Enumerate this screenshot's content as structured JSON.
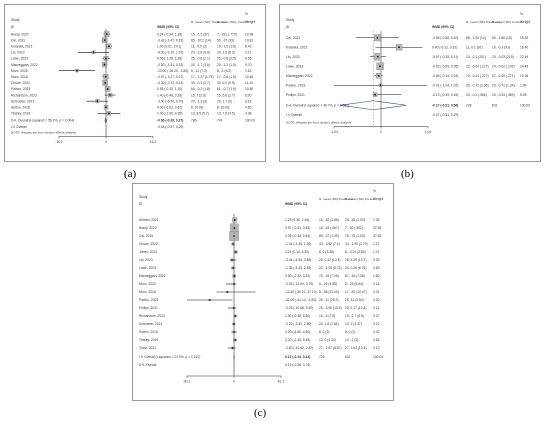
{
  "panels": [
    {
      "label": "(a)"
    },
    {
      "label": "(b)"
    },
    {
      "label": "(c)"
    }
  ],
  "chart_data": [
    {
      "type": "forest",
      "panel": "(a)",
      "header": {
        "study": "Study",
        "id": "ID",
        "effect": "WMD (95% CI)",
        "treat_n": "N, mean (SD); Treatment",
        "ctrl_n": "N, mean (SD); Control",
        "pct": "%",
        "weight": "Weight"
      },
      "studies": [
        {
          "name": "Brady, 2020",
          "effect_text": "0.24 (-0.94, 1.38)",
          "treat_text": "15, -1.2 (37)",
          "ctrl_text": "7, -28 (1.770)",
          "weight_text": "10.98",
          "mean": 0.24,
          "lo": -0.94,
          "hi": 1.38,
          "weight": 10.98
        },
        {
          "name": "Cai, 2021",
          "effect_text": "-0.42 (-1.47, 0.21)",
          "treat_text": "85, -10.2 (14)",
          "ctrl_text": "50, -37 (33)",
          "weight_text": "10.81",
          "mean": -0.42,
          "lo": -1.47,
          "hi": 0.21,
          "weight": 10.81
        },
        {
          "name": "Kolareta, 2021",
          "effect_text": "1.00 (0.01, 2.01)",
          "treat_text": "11, -0.5 (2)",
          "ctrl_text": "10, -1.5 (1.5)",
          "weight_text": "8.40",
          "mean": 1.0,
          "lo": 0.01,
          "hi": 2.01,
          "weight": 8.4
        },
        {
          "name": "Lin, 2023",
          "effect_text": "-4.30 (-9.70, 1.10)",
          "treat_text": "24, -2.8 (9.9)",
          "ctrl_text": "20, 1.5 (8.3)",
          "weight_text": "2.11",
          "mean": -4.3,
          "lo": -9.7,
          "hi": 1.1,
          "weight": 2.11
        },
        {
          "name": "Lowe, 2023",
          "effect_text": "0.00 (-1.28, 1.28)",
          "treat_text": "25, -0.6 (2.1)",
          "ctrl_text": "25, -0.6 (2.5)",
          "weight_text": "6.95",
          "mean": 0.0,
          "lo": -1.28,
          "hi": 1.28,
          "weight": 6.95
        },
        {
          "name": "Maroeggian, 2022",
          "effect_text": "-0.50 (-1.31, 0.32)",
          "treat_text": "20, -1.7 (1.6)",
          "ctrl_text": "20, -1.2 (1.0)",
          "weight_text": "9.70",
          "mean": -0.5,
          "lo": -1.31,
          "hi": 0.32,
          "weight": 9.7
        },
        {
          "name": "Moro, 2020",
          "effect_text": "-10.00 (-16.20, -3.80)",
          "treat_text": "8, -11 (7.2)",
          "ctrl_text": "8, -1 (5.2)",
          "weight_text": "1.63",
          "mean": -10.0,
          "lo": -16.2,
          "hi": -3.8,
          "weight": 1.63
        },
        {
          "name": "Moro, 2016",
          "effect_text": "-0.07 (-1.27, 0.27)",
          "treat_text": "17, -1.27 (1.78)",
          "ctrl_text": "17, -0.6 (1.8)",
          "weight_text": "10.45",
          "mean": -0.07,
          "lo": -1.27,
          "hi": 0.27,
          "weight": 10.45
        },
        {
          "name": "Chuan, 2022",
          "effect_text": "-0.30 (-0.72, 0.12)",
          "treat_text": "30, -0.3 (0.7)",
          "ctrl_text": "30, 0.0 (0.9)",
          "weight_text": "11.10",
          "mean": -0.3,
          "lo": -0.72,
          "hi": 0.12,
          "weight": 11.1
        },
        {
          "name": "Pavlou, 2023",
          "effect_text": "0.55 (-0.10, 1.20)",
          "treat_text": "60, -0.2 (1.8)",
          "ctrl_text": "61, -0.7 (1.9)",
          "weight_text": "10.50",
          "mean": 0.55,
          "lo": -0.1,
          "hi": 1.2,
          "weight": 10.5
        },
        {
          "name": "Richardson, 2023",
          "effect_text": "1.40 (-0.48, 3.28)",
          "treat_text": "15, 7 (2.6)",
          "ctrl_text": "15, 5.6 (2.7)",
          "weight_text": "5.00",
          "mean": 1.4,
          "lo": -0.48,
          "hi": 3.28,
          "weight": 5.0
        },
        {
          "name": "Schroeter, 2021",
          "effect_text": "-3.00 (-6.70, 0.70)",
          "treat_text": "20, -1.3 (6)",
          "ctrl_text": "20, 1.7 (6)",
          "weight_text": "3.19",
          "mean": -3.0,
          "lo": -6.7,
          "hi": 0.7,
          "weight": 3.19
        },
        {
          "name": "Sutton, 2018",
          "effect_text": "0.00 (-0.62, 0.62)",
          "treat_text": "8, 20 (6)",
          "ctrl_text": "8, 20 (6)",
          "weight_text": "4.80",
          "mean": 0.0,
          "lo": -0.62,
          "hi": 0.62,
          "weight": 4.8
        },
        {
          "name": "Tinsley, 2019",
          "effect_text": "1.00 (-2.95, 4.95)",
          "treat_text": "13, 8.5 (5.7)",
          "ctrl_text": "13, 7.5 (4.5)",
          "weight_text": "4.38",
          "mean": 1.0,
          "lo": -2.95,
          "hi": 4.95,
          "weight": 4.38
        }
      ],
      "overall": {
        "name": "D+L Overall (I-squared = 56.7%, p = 0.004)",
        "effect_text": "-0.06 (-0.39, 0.27)",
        "treat_text": "786",
        "ctrl_text": "747",
        "weight_text": "100.00",
        "mean": -0.06,
        "lo": -0.39,
        "hi": 0.27
      },
      "summary_rows": [
        {
          "name": "I-V Overall",
          "effect_text": "-0.04 (-0.37, 0.29)",
          "mean": -0.04
        }
      ],
      "note": "NOTE: Weights are from random effects analysis",
      "xticks": [
        -16.2,
        0,
        16.2
      ],
      "xlim": [
        -16.2,
        16.2
      ]
    },
    {
      "type": "forest",
      "panel": "(b)",
      "header": {
        "study": "Study",
        "id": "ID",
        "effect": "WMD (95% CI)",
        "treat_n": "N, mean (SD) Treatment",
        "ctrl_n": "N, mean (SD) Control",
        "pct": "%",
        "weight": "Weight"
      },
      "studies": [
        {
          "name": "Cai, 2021",
          "effect_text": "-0.08 (-0.56, 0.40)",
          "treat_text": "85, -1.94 (14)",
          "ctrl_text": "50, -1.86 (15)",
          "weight_text": "19.32",
          "mean": -0.08,
          "lo": -0.56,
          "hi": 0.4,
          "weight": 19.32
        },
        {
          "name": "Kolareta, 2021",
          "effect_text": "0.40 (-0.12, 0.92)",
          "treat_text": "11, 0.1 (91)",
          "ctrl_text": "10, -0.3 (93)",
          "weight_text": "16.40",
          "mean": 0.4,
          "lo": -0.12,
          "hi": 0.92,
          "weight": 16.4
        },
        {
          "name": "Lin, 2023",
          "effect_text": "-0.07 (-0.25, 0.11)",
          "treat_text": "24, -0.1 (201)",
          "ctrl_text": "20, -0.03 (215)",
          "weight_text": "22.49",
          "mean": -0.07,
          "lo": -0.25,
          "hi": 0.11,
          "weight": 22.49
        },
        {
          "name": "Lowe, 2023",
          "effect_text": "-0.02 (-0.09, 0.05)",
          "treat_text": "22, -0.04 (.127)",
          "ctrl_text": "24, -0.02 (.126)",
          "weight_text": "24.49",
          "mean": -0.02,
          "lo": -0.09,
          "hi": 0.05,
          "weight": 24.49
        },
        {
          "name": "Maroeggian, 2022",
          "effect_text": "-0.05 (-0.14, 0.04)",
          "treat_text": "70, -0.14 (.277)",
          "ctrl_text": "67, -0.09 (.271)",
          "weight_text": "10.26",
          "mean": -0.05,
          "lo": -0.14,
          "hi": 0.04,
          "weight": 10.26
        },
        {
          "name": "Pavlou, 2023",
          "effect_text": "-0.01 (-1.04, 1.02)",
          "treat_text": "20, -0.72 (1.96)",
          "ctrl_text": "20, -0.71 (1.24)",
          "weight_text": "1.99",
          "mean": -0.01,
          "lo": -1.04,
          "hi": 1.02,
          "weight": 1.99
        },
        {
          "name": "Philips, 2021",
          "effect_text": "-0.13 (-0.19, 0.45)",
          "treat_text": "20, -0.2 (.566)",
          "ctrl_text": "20, -0.33 (.489)",
          "weight_text": "5.05",
          "mean": -0.13,
          "lo": -0.19,
          "hi": 0.45,
          "weight": 5.05
        }
      ],
      "overall": {
        "name": "D+L Overall (I-squared = 46.7%, p = 0.080)",
        "effect_text": "-0.17 (-0.91, 0.56)",
        "treat_text": "728",
        "ctrl_text": "631",
        "weight_text": "100.00",
        "mean": -0.17,
        "lo": -0.91,
        "hi": 0.56
      },
      "summary_rows": [
        {
          "name": "I-V Overall",
          "effect_text": "-0.07 (-0.51, 0.29)",
          "mean": -0.07
        }
      ],
      "note": "NOTE: Weights are from random effects analysis",
      "xticks": [
        -1.04,
        0,
        1.04
      ],
      "xlim": [
        -1.04,
        1.04
      ]
    },
    {
      "type": "forest",
      "panel": "(c)",
      "header": {
        "study": "Study",
        "id": "ID",
        "effect": "WMD (95% CI)",
        "treat_n": "N, mean (SD) Treatment",
        "ctrl_n": "N, mean (SD) Control",
        "pct": "%",
        "weight": "Weight"
      },
      "studies": [
        {
          "name": "Ahmed, 2021",
          "effect_text": "1.25 (0.36, 2.44)",
          "treat_text": "15, -52 (1.86)",
          "ctrl_text": "25, -63 (1.93)",
          "weight_text": "7.08",
          "mean": 1.25,
          "lo": 0.36,
          "hi": 2.44,
          "weight": 7.08
        },
        {
          "name": "Brady, 2020",
          "effect_text": "0.57 (-0.51, 0.53)",
          "treat_text": "15, -24 (.667)",
          "ctrl_text": "7, -30 (.502)",
          "weight_text": "37.26",
          "mean": 0.57,
          "lo": -0.51,
          "hi": 0.53,
          "weight": 37.26
        },
        {
          "name": "Cai, 2019",
          "effect_text": "0.08 (-0.38, 0.54)",
          "treat_text": "85, -37 (1.39)",
          "ctrl_text": "75, -75 (1.53)",
          "weight_text": "47.62",
          "mean": 0.08,
          "lo": -0.38,
          "hi": 0.54,
          "weight": 47.62
        },
        {
          "name": "Chuan, 2022",
          "effect_text": "-1.44 (-4.26, 1.36)",
          "treat_text": "33, -3.52 (7.4)",
          "ctrl_text": "34, -1.90 (3.79)",
          "weight_text": "1.27",
          "mean": -1.44,
          "lo": -4.26,
          "hi": 1.36,
          "weight": 1.27
        },
        {
          "name": "Jones, 2023",
          "effect_text": "3.24 (0.10, 6.30)",
          "treat_text": "8, 0 (3.38)",
          "ctrl_text": "8, -3.24 (2.80)",
          "weight_text": "1.07",
          "mean": 3.24,
          "lo": 0.1,
          "hi": 6.3,
          "weight": 1.07
        },
        {
          "name": "Lin, 2023",
          "effect_text": "-3.44 (-6.94, 3.88)",
          "treat_text": "28, 0.42 (10.3)",
          "ctrl_text": "28, 4.26 (10.7)",
          "weight_text": "0.39",
          "mean": -3.44,
          "lo": -6.94,
          "hi": 3.88,
          "weight": 0.39
        },
        {
          "name": "Lowe, 2023",
          "effect_text": "-1.35 (-5.25, 2.55)",
          "treat_text": "22, -1.09 (6.72)",
          "ctrl_text": "24, 0.26 (6.76)",
          "weight_text": "0.69",
          "mean": -1.35,
          "lo": -5.25,
          "hi": 2.55,
          "weight": 0.69
        },
        {
          "name": "Maroeggian, 2022",
          "effect_text": "0.50 (-2.32, 3.32)",
          "treat_text": "70, -16 (7.06)",
          "ctrl_text": "67, -16 (7.06)",
          "weight_text": "1.60",
          "mean": 0.5,
          "lo": -2.32,
          "hi": 3.32,
          "weight": 1.6
        },
        {
          "name": "Moro, 2020",
          "effect_text": "-0.03 (-13.94, 3.79)",
          "treat_text": "8, -26 (4.58)",
          "ctrl_text": "8, -25 (6.64)",
          "weight_text": "0.14",
          "mean": -0.03,
          "lo": -13.94,
          "hi": 3.79,
          "weight": 0.14
        },
        {
          "name": "Moro, 2016",
          "effect_text": "-11.50 (-30.22, 37.10)",
          "treat_text": "8, -38 (21.05)",
          "ctrl_text": "17, -87 (10.07)",
          "weight_text": "0.01",
          "mean": -11.5,
          "lo": -30.22,
          "hi": 37.1,
          "weight": 0.01
        },
        {
          "name": "Pavlou, 2023",
          "effect_text": "-42.00 (-81.14, -2.90)",
          "treat_text": "25, -11 (28.3)",
          "ctrl_text": "25, 31 (3.50)",
          "weight_text": "0.00",
          "mean": -42.0,
          "lo": -81.14,
          "hi": -2.9,
          "weight": 0.0
        },
        {
          "name": "Philips, 2021",
          "effect_text": "-0.25 (-10.68, 3.92)",
          "treat_text": "25, -3.06 (10.5)",
          "ctrl_text": "20, 2.17 (10.8)",
          "weight_text": "0.12",
          "mean": -0.25,
          "lo": -10.68,
          "hi": 3.92,
          "weight": 0.12
        },
        {
          "name": "Richardson, 2023",
          "effect_text": "1.90 (-0.38, 5.80)",
          "treat_text": "15, -5 (7.6)",
          "ctrl_text": "15, -2.7 (6.9)",
          "weight_text": "0.37",
          "mean": 1.9,
          "lo": -0.38,
          "hi": 5.8,
          "weight": 0.37
        },
        {
          "name": "Schroeter, 2021",
          "effect_text": "-0.20 (-3.30, 2.90)",
          "treat_text": "20, 1.8 (1.84)",
          "ctrl_text": "13, 2 (2.47)",
          "weight_text": "0.21",
          "mean": -0.2,
          "lo": -3.3,
          "hi": 2.9,
          "weight": 0.21
        },
        {
          "name": "Sutton, 2018",
          "effect_text": "0.00 (-4.80, 4.80)",
          "treat_text": "8, 0 (2)",
          "ctrl_text": "8, 0 (2)",
          "weight_text": "0.42",
          "mean": 0.0,
          "lo": -4.8,
          "hi": 4.8,
          "weight": 0.42
        },
        {
          "name": "Tinsley, 2019",
          "effect_text": "2.00 (-1.45, 5.45)",
          "treat_text": "13, 0 (4.24)",
          "ctrl_text": "14, -2 (3)",
          "weight_text": "0.62",
          "mean": 2.0,
          "lo": -1.45,
          "hi": 5.45,
          "weight": 0.62
        },
        {
          "name": "Tovar, 2021",
          "effect_text": "-2.60 (-10.62, 2.82)",
          "treat_text": "27, -2.67 (8.67)",
          "ctrl_text": "27, 1.63 (13.3)",
          "weight_text": "0.10",
          "mean": -2.6,
          "lo": -10.62,
          "hi": 2.82,
          "weight": 0.1
        }
      ],
      "overall": {
        "name": "I-V Overall (I-squared = 24.9%, p = 0.167)",
        "effect_text": "0.12 (-0.19, 0.44)",
        "treat_text": "725",
        "ctrl_text": "631",
        "weight_text": "100.00",
        "mean": 0.12,
        "lo": -0.19,
        "hi": 0.44
      },
      "summary_rows": [
        {
          "name": "D+L Overall",
          "effect_text": "0.19 (-0.38, 0.76)",
          "mean": 0.19
        }
      ],
      "note": "",
      "xticks": [
        -81.1,
        0,
        81.1
      ],
      "xlim": [
        -81.1,
        81.1
      ]
    }
  ]
}
